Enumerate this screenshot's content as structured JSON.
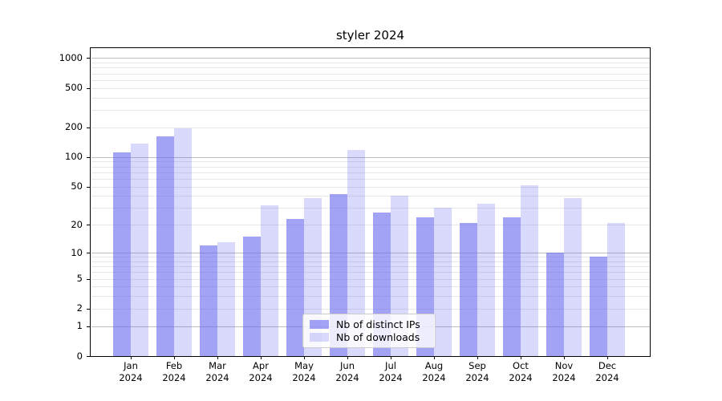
{
  "title": "styler 2024",
  "chart_data": {
    "type": "bar",
    "title": "styler 2024",
    "categories": [
      "Jan",
      "Feb",
      "Mar",
      "Apr",
      "May",
      "Jun",
      "Jul",
      "Aug",
      "Sep",
      "Oct",
      "Nov",
      "Dec"
    ],
    "category_year": "2024",
    "series": [
      {
        "name": "Nb of distinct IPs",
        "color": "#6666ee",
        "alpha": 0.6,
        "values": [
          112,
          161,
          12,
          15,
          23,
          42,
          27,
          24,
          21,
          24,
          10,
          9
        ]
      },
      {
        "name": "Nb of downloads",
        "color": "#6666ee",
        "alpha": 0.25,
        "values": [
          137,
          194,
          13,
          32,
          38,
          117,
          40,
          30,
          33,
          51,
          38,
          21
        ]
      }
    ],
    "yscale": "log1p",
    "yticks": [
      0,
      1,
      2,
      5,
      10,
      20,
      50,
      100,
      200,
      500,
      1000
    ],
    "major_grid_values": [
      1,
      10,
      100,
      1000
    ],
    "minor_grid_decades": [
      1,
      10,
      100
    ],
    "ylim": [
      0,
      1260
    ],
    "xlabel": "",
    "ylabel": "",
    "grid": true,
    "legend_position": "lower center"
  },
  "colors": {
    "bar_base": "#6666ee",
    "major_grid": "#bdbdbd",
    "minor_grid": "#e7e7e7",
    "spine": "#000000",
    "text": "#000000",
    "legend_border": "#cccccc",
    "legend_background": "rgba(255,255,255,0.8)"
  }
}
